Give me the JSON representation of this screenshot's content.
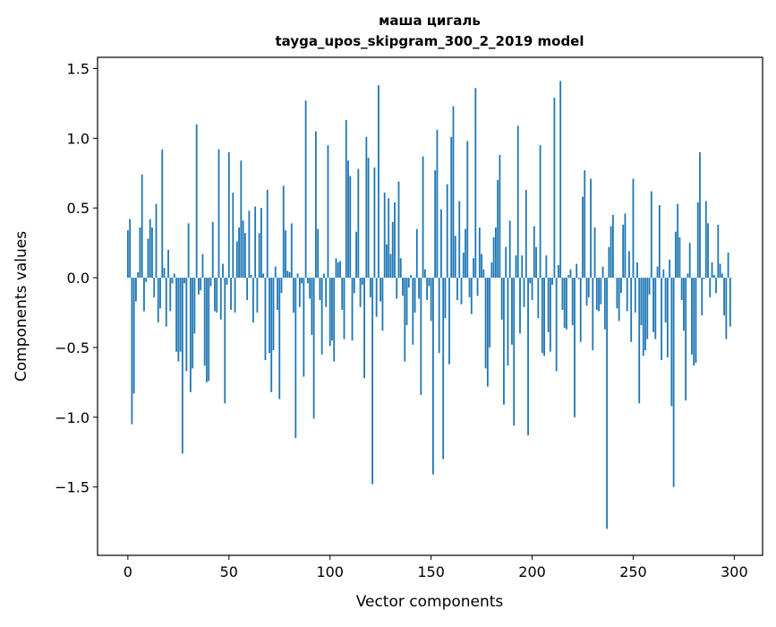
{
  "chart_data": {
    "type": "bar",
    "title": "маша цигаль",
    "subtitle": "tayga_upos_skipgram_300_2_2019 model",
    "xlabel": "Vector components",
    "ylabel": "Components values",
    "xlim": [
      -15,
      314
    ],
    "ylim": [
      -1.99,
      1.58
    ],
    "bar_color": "#1f77b4",
    "bar_width": 0.8,
    "grid": false,
    "xticks": [
      0,
      50,
      100,
      150,
      200,
      250,
      300
    ],
    "xtick_labels": [
      "0",
      "50",
      "100",
      "150",
      "200",
      "250",
      "300"
    ],
    "yticks": [
      1.5,
      1.0,
      0.5,
      0.0,
      -0.5,
      -1.0,
      -1.5
    ],
    "ytick_labels": [
      "1.5",
      "1.0",
      "0.5",
      "0.0",
      "−0.5",
      "−1.0",
      "−1.5"
    ],
    "values": [
      0.34,
      0.42,
      -1.05,
      -0.83,
      -0.17,
      0.04,
      0.36,
      0.74,
      -0.24,
      -0.03,
      0.28,
      0.42,
      0.36,
      -0.14,
      0.53,
      -0.32,
      -0.22,
      0.92,
      0.07,
      -0.35,
      0.2,
      -0.24,
      -0.04,
      0.03,
      -0.53,
      -0.6,
      -0.53,
      -1.26,
      -0.04,
      -0.67,
      0.39,
      -0.82,
      -0.65,
      -0.4,
      1.1,
      -0.12,
      -0.09,
      0.17,
      -0.63,
      -0.75,
      -0.74,
      -0.06,
      0.4,
      -0.24,
      -0.25,
      0.92,
      -0.3,
      0.1,
      -0.9,
      -0.05,
      0.9,
      -0.23,
      0.61,
      -0.25,
      0.26,
      0.36,
      0.84,
      0.41,
      0.32,
      -0.16,
      0.48,
      0.02,
      -0.32,
      0.51,
      -0.25,
      0.32,
      0.5,
      0.03,
      -0.59,
      0.63,
      -0.54,
      -0.82,
      -0.52,
      0.08,
      -0.23,
      -0.87,
      -0.11,
      0.66,
      0.34,
      0.05,
      0.04,
      0.39,
      -0.25,
      -1.15,
      0.03,
      -0.21,
      -0.04,
      -0.71,
      1.27,
      -0.04,
      -0.15,
      -0.41,
      -1.01,
      1.05,
      0.35,
      -0.16,
      -0.55,
      0.03,
      -0.21,
      0.95,
      -0.49,
      -0.45,
      -0.6,
      0.14,
      0.11,
      0.12,
      -0.23,
      -0.44,
      1.13,
      0.84,
      0.73,
      -0.45,
      -0.11,
      0.33,
      0.78,
      -0.21,
      -0.05,
      -0.72,
      1.01,
      0.86,
      -0.14,
      -1.48,
      0.79,
      -0.28,
      1.38,
      -0.17,
      -0.38,
      0.61,
      0.24,
      0.57,
      0.17,
      0.4,
      0.54,
      -0.15,
      0.69,
      0.14,
      -0.13,
      -0.6,
      -0.34,
      -0.07,
      0.02,
      -0.48,
      -0.25,
      0.35,
      -0.15,
      -0.84,
      0.87,
      0.06,
      -0.16,
      -0.06,
      -0.31,
      -1.41,
      0.77,
      1.06,
      -0.54,
      0.49,
      -1.3,
      -0.29,
      0.67,
      -0.62,
      1.01,
      1.23,
      0.3,
      -0.16,
      0.55,
      -0.19,
      0.18,
      0.35,
      0.98,
      -0.14,
      -0.26,
      0.14,
      1.36,
      -0.13,
      0.36,
      0.17,
      0.06,
      -0.65,
      -0.78,
      -0.5,
      0.11,
      0.29,
      0.36,
      0.7,
      0.88,
      -0.3,
      -0.91,
      0.22,
      -0.63,
      0.41,
      -0.48,
      -1.06,
      0.16,
      1.09,
      -0.4,
      0.16,
      -0.21,
      0.63,
      -1.13,
      -0.04,
      -0.16,
      0.37,
      0.22,
      -0.29,
      0.95,
      -0.54,
      -0.56,
      0.16,
      -0.39,
      -0.53,
      -0.05,
      1.29,
      -0.67,
      0.09,
      1.41,
      -0.23,
      -0.36,
      -0.37,
      0.02,
      0.06,
      -0.34,
      -1.0,
      0.1,
      -0.01,
      -0.46,
      0.58,
      0.77,
      -0.2,
      -0.14,
      0.71,
      -0.52,
      0.36,
      -0.23,
      -0.24,
      -0.19,
      0.08,
      -0.37,
      -1.8,
      0.22,
      0.37,
      0.45,
      0.0,
      -0.22,
      -0.31,
      -0.11,
      0.38,
      0.46,
      -0.24,
      0.19,
      -0.46,
      0.71,
      -0.25,
      0.11,
      -0.9,
      -0.34,
      -0.56,
      -0.52,
      -0.44,
      -0.12,
      0.62,
      -0.39,
      -0.44,
      0.08,
      0.52,
      -0.59,
      0.06,
      -0.32,
      -0.57,
      0.13,
      -0.92,
      -1.5,
      0.33,
      0.53,
      0.29,
      -0.16,
      -0.38,
      -0.88,
      0.03,
      0.25,
      -0.55,
      -0.63,
      -0.61,
      0.54,
      0.9,
      -0.27,
      -0.01,
      0.55,
      0.39,
      -0.14,
      0.11,
      0.02,
      -0.11,
      0.38,
      0.1,
      0.03,
      -0.27,
      -0.44,
      0.18,
      -0.35,
      0.0
    ]
  }
}
